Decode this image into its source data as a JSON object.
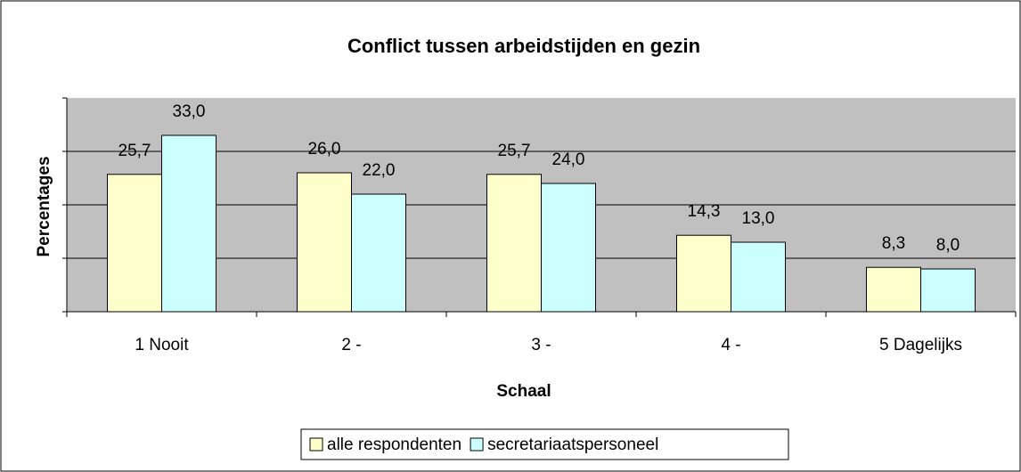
{
  "chart_data": {
    "type": "bar",
    "title": "Conflict tussen arbeidstijden en gezin",
    "x_label": "Schaal",
    "y_label": "Percentages",
    "categories": [
      "1 Nooit",
      "2  -",
      "3  -",
      "4  -",
      "5 Dagelijks"
    ],
    "series": [
      {
        "name": "alle respondenten",
        "color": "#ffffcc",
        "values": [
          25.7,
          26.0,
          25.7,
          14.3,
          8.3
        ],
        "value_labels": [
          "25,7",
          "26,0",
          "25,7",
          "14,3",
          "8,3"
        ]
      },
      {
        "name": "secretariaatspersoneel",
        "color": "#ccffff",
        "values": [
          33.0,
          22.0,
          24.0,
          13.0,
          8.0
        ],
        "value_labels": [
          "33,0",
          "22,0",
          "24,0",
          "13,0",
          "8,0"
        ]
      }
    ],
    "ylim": [
      0,
      40
    ],
    "yticks": [
      0,
      10,
      20,
      30,
      40
    ],
    "grid": true,
    "plot_background": "#c0c0c0",
    "legend": "bottom"
  }
}
